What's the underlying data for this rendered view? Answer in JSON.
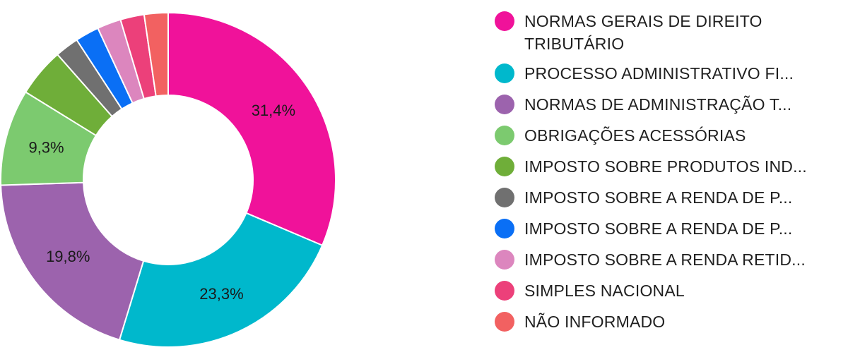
{
  "chart_data": {
    "type": "pie",
    "style": "donut",
    "title": "",
    "legend_position": "right",
    "slices": [
      {
        "label": "NORMAS GERAIS DE DIREITO TRIBUTÁRIO",
        "value": 31.4,
        "display": "31,4%",
        "color": "#f0129a"
      },
      {
        "label": "PROCESSO ADMINISTRATIVO FI...",
        "value": 23.3,
        "display": "23,3%",
        "color": "#00b8cc"
      },
      {
        "label": "NORMAS DE ADMINISTRAÇÃO T...",
        "value": 19.8,
        "display": "19,8%",
        "color": "#9c63ad"
      },
      {
        "label": "OBRIGAÇÕES ACESSÓRIAS",
        "value": 9.3,
        "display": "9,3%",
        "color": "#7cca6f"
      },
      {
        "label": "IMPOSTO SOBRE PRODUTOS IND...",
        "value": 4.7,
        "display": "",
        "color": "#6fae39"
      },
      {
        "label": "IMPOSTO SOBRE A RENDA DE P...",
        "value": 2.3,
        "display": "",
        "color": "#707070"
      },
      {
        "label": "IMPOSTO SOBRE A RENDA DE P...",
        "value": 2.3,
        "display": "",
        "color": "#0a6ff5"
      },
      {
        "label": "IMPOSTO SOBRE A RENDA RETID...",
        "value": 2.3,
        "display": "",
        "color": "#dc86be"
      },
      {
        "label": "SIMPLES NACIONAL",
        "value": 2.3,
        "display": "",
        "color": "#ec407a"
      },
      {
        "label": "NÃO INFORMADO",
        "value": 2.3,
        "display": "",
        "color": "#f26161"
      }
    ]
  }
}
